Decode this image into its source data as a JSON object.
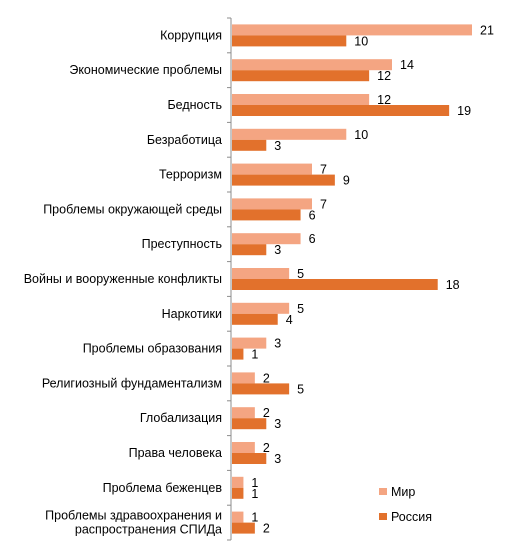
{
  "chart_data": {
    "type": "bar",
    "orientation": "horizontal",
    "categories": [
      [
        "Коррупция"
      ],
      [
        "Экономические проблемы"
      ],
      [
        "Бедность"
      ],
      [
        "Безработица"
      ],
      [
        "Терроризм"
      ],
      [
        "Проблемы окружающей среды"
      ],
      [
        "Преступность"
      ],
      [
        "Войны и вооруженные конфликты"
      ],
      [
        "Наркотики"
      ],
      [
        "Проблемы образования"
      ],
      [
        "Религиозный фундаментализм"
      ],
      [
        "Глобализация"
      ],
      [
        "Права человека"
      ],
      [
        "Проблема беженцев"
      ],
      [
        "Проблемы здравоохранения и",
        "распространения СПИДа"
      ]
    ],
    "series": [
      {
        "name": "Мир",
        "color": "#F4A582",
        "values": [
          21,
          14,
          12,
          10,
          7,
          7,
          6,
          5,
          5,
          3,
          2,
          2,
          2,
          1,
          1
        ]
      },
      {
        "name": "Россия",
        "color": "#E2712C",
        "values": [
          10,
          12,
          19,
          3,
          9,
          6,
          3,
          18,
          4,
          1,
          5,
          3,
          3,
          1,
          2
        ]
      }
    ],
    "xlim": [
      0,
      21
    ],
    "legend_position": "bottom-right",
    "data_labels": true,
    "grid": false
  }
}
